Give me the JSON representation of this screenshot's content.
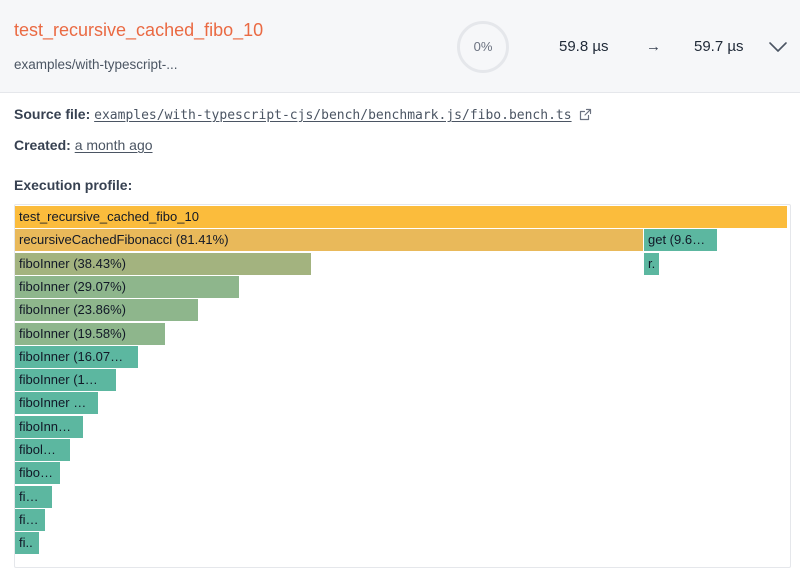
{
  "header": {
    "title": "test_recursive_cached_fibo_10",
    "path": "examples/with-typescript-...",
    "progress": {
      "label": "0%",
      "value": 0
    },
    "base_time": "59.8 µs",
    "arrow": "→",
    "head_time": "59.7 µs",
    "expand_icon": "chevron-down-icon"
  },
  "details": {
    "source_label": "Source file:",
    "source_value": "examples/with-typescript-cjs/bench/benchmark.js/fibo.bench.ts",
    "source_icon": "external-link-icon",
    "created_label": "Created:",
    "created_value": "a month ago",
    "profile_label": "Execution profile:"
  },
  "flamegraph": {
    "colors": {
      "root": "#fbbc3c",
      "level1": "#e9b95a",
      "olive": "#a3b37f",
      "green": "#8eb68c",
      "teal": "#5cb7a0"
    },
    "frames": [
      {
        "label": "test_recursive_cached_fibo_10",
        "depth": 0,
        "start": 0,
        "fraction": 1.0,
        "color": "root"
      },
      {
        "label": "recursiveCachedFibonacci (81.41%)",
        "depth": 1,
        "start": 0,
        "fraction": 0.8141,
        "color": "level1"
      },
      {
        "label": "get (9.6…",
        "depth": 1,
        "start": 0.8141,
        "fraction": 0.096,
        "color": "teal"
      },
      {
        "label": "r.",
        "depth": 2,
        "start": 0.8141,
        "fraction": 0.021,
        "color": "teal"
      },
      {
        "label": "fiboInner (38.43%)",
        "depth": 2,
        "start": 0,
        "fraction": 0.3843,
        "color": "olive"
      },
      {
        "label": "fiboInner (29.07%)",
        "depth": 3,
        "start": 0,
        "fraction": 0.2907,
        "color": "green"
      },
      {
        "label": "fiboInner (23.86%)",
        "depth": 4,
        "start": 0,
        "fraction": 0.2386,
        "color": "green"
      },
      {
        "label": "fiboInner (19.58%)",
        "depth": 5,
        "start": 0,
        "fraction": 0.1958,
        "color": "green"
      },
      {
        "label": "fiboInner (16.07…",
        "depth": 6,
        "start": 0,
        "fraction": 0.1607,
        "color": "teal"
      },
      {
        "label": "fiboInner (1…",
        "depth": 7,
        "start": 0,
        "fraction": 0.1318,
        "color": "teal"
      },
      {
        "label": "fiboInner …",
        "depth": 8,
        "start": 0,
        "fraction": 0.1081,
        "color": "teal"
      },
      {
        "label": "fiboInn…",
        "depth": 9,
        "start": 0,
        "fraction": 0.0887,
        "color": "teal"
      },
      {
        "label": "fibol…",
        "depth": 10,
        "start": 0,
        "fraction": 0.0728,
        "color": "teal"
      },
      {
        "label": "fibo…",
        "depth": 11,
        "start": 0,
        "fraction": 0.0597,
        "color": "teal"
      },
      {
        "label": "fi…",
        "depth": 12,
        "start": 0,
        "fraction": 0.0489,
        "color": "teal"
      },
      {
        "label": "fi…",
        "depth": 13,
        "start": 0,
        "fraction": 0.0401,
        "color": "teal"
      },
      {
        "label": "fi..",
        "depth": 14,
        "start": 0,
        "fraction": 0.0329,
        "color": "teal"
      }
    ]
  }
}
